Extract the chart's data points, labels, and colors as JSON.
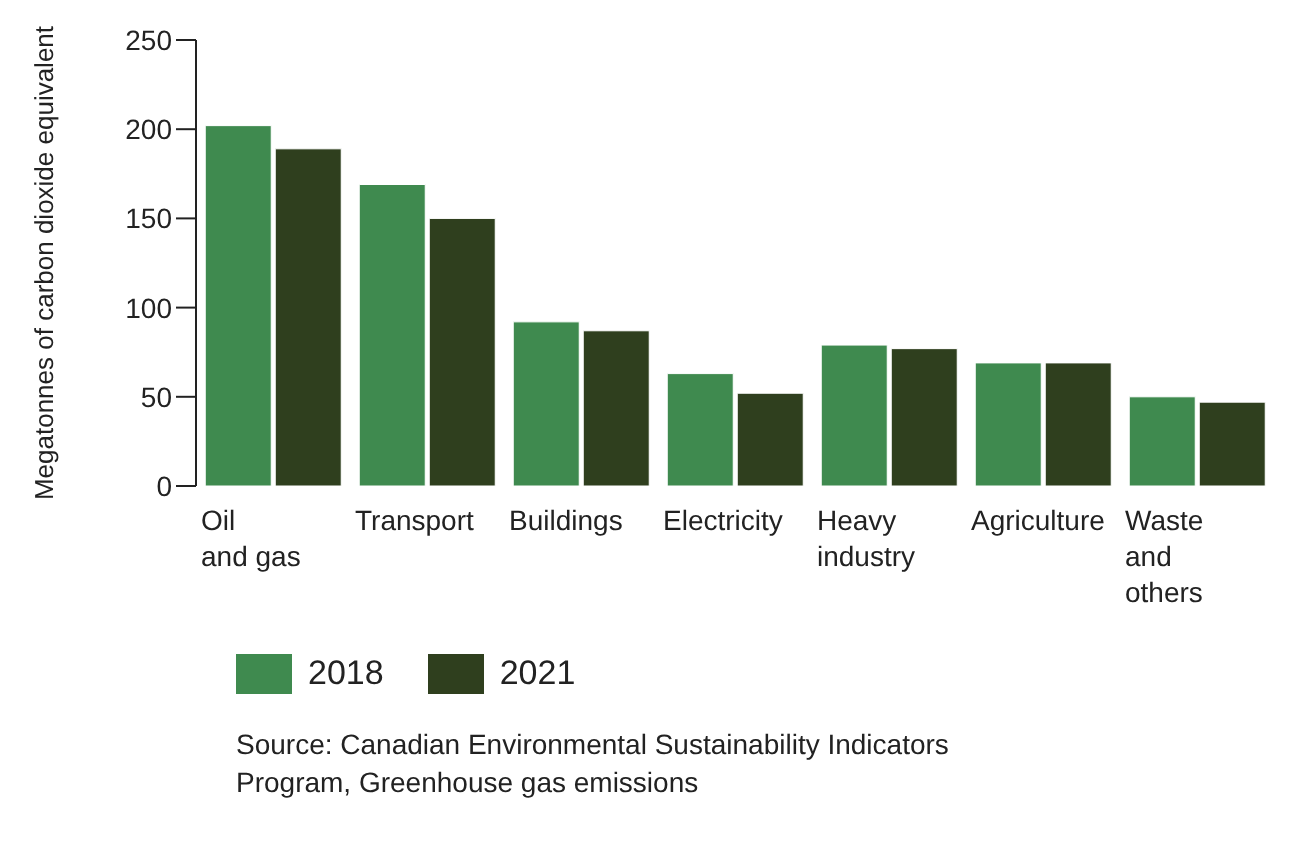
{
  "chart_data": {
    "type": "bar",
    "ylabel": "Megatonnes of carbon dioxide equivalent",
    "categories": [
      "Oil\nand gas",
      "Transport",
      "Buildings",
      "Electricity",
      "Heavy\nindustry",
      "Agriculture",
      "Waste\nand\nothers"
    ],
    "series": [
      {
        "name": "2018",
        "color": "#3f8a4f",
        "values": [
          202,
          169,
          92,
          63,
          79,
          69,
          50
        ]
      },
      {
        "name": "2021",
        "color": "#2f3f1e",
        "values": [
          189,
          150,
          87,
          52,
          77,
          69,
          47
        ]
      }
    ],
    "ylim": [
      0,
      250
    ],
    "yticks": [
      0,
      50,
      100,
      150,
      200,
      250
    ],
    "grid": false,
    "legend": "bottom left",
    "annotations": [
      "Source: Canadian Environmental Sustainability Indicators Program, Greenhouse gas emissions"
    ]
  }
}
